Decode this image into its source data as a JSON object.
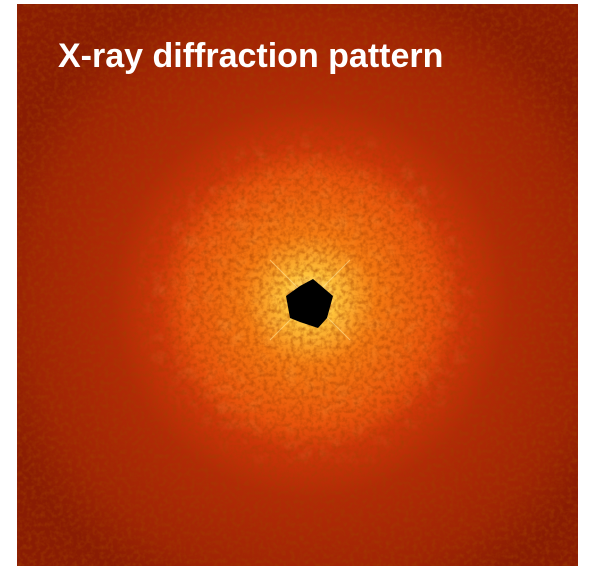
{
  "title": "X-ray diffraction pattern"
}
